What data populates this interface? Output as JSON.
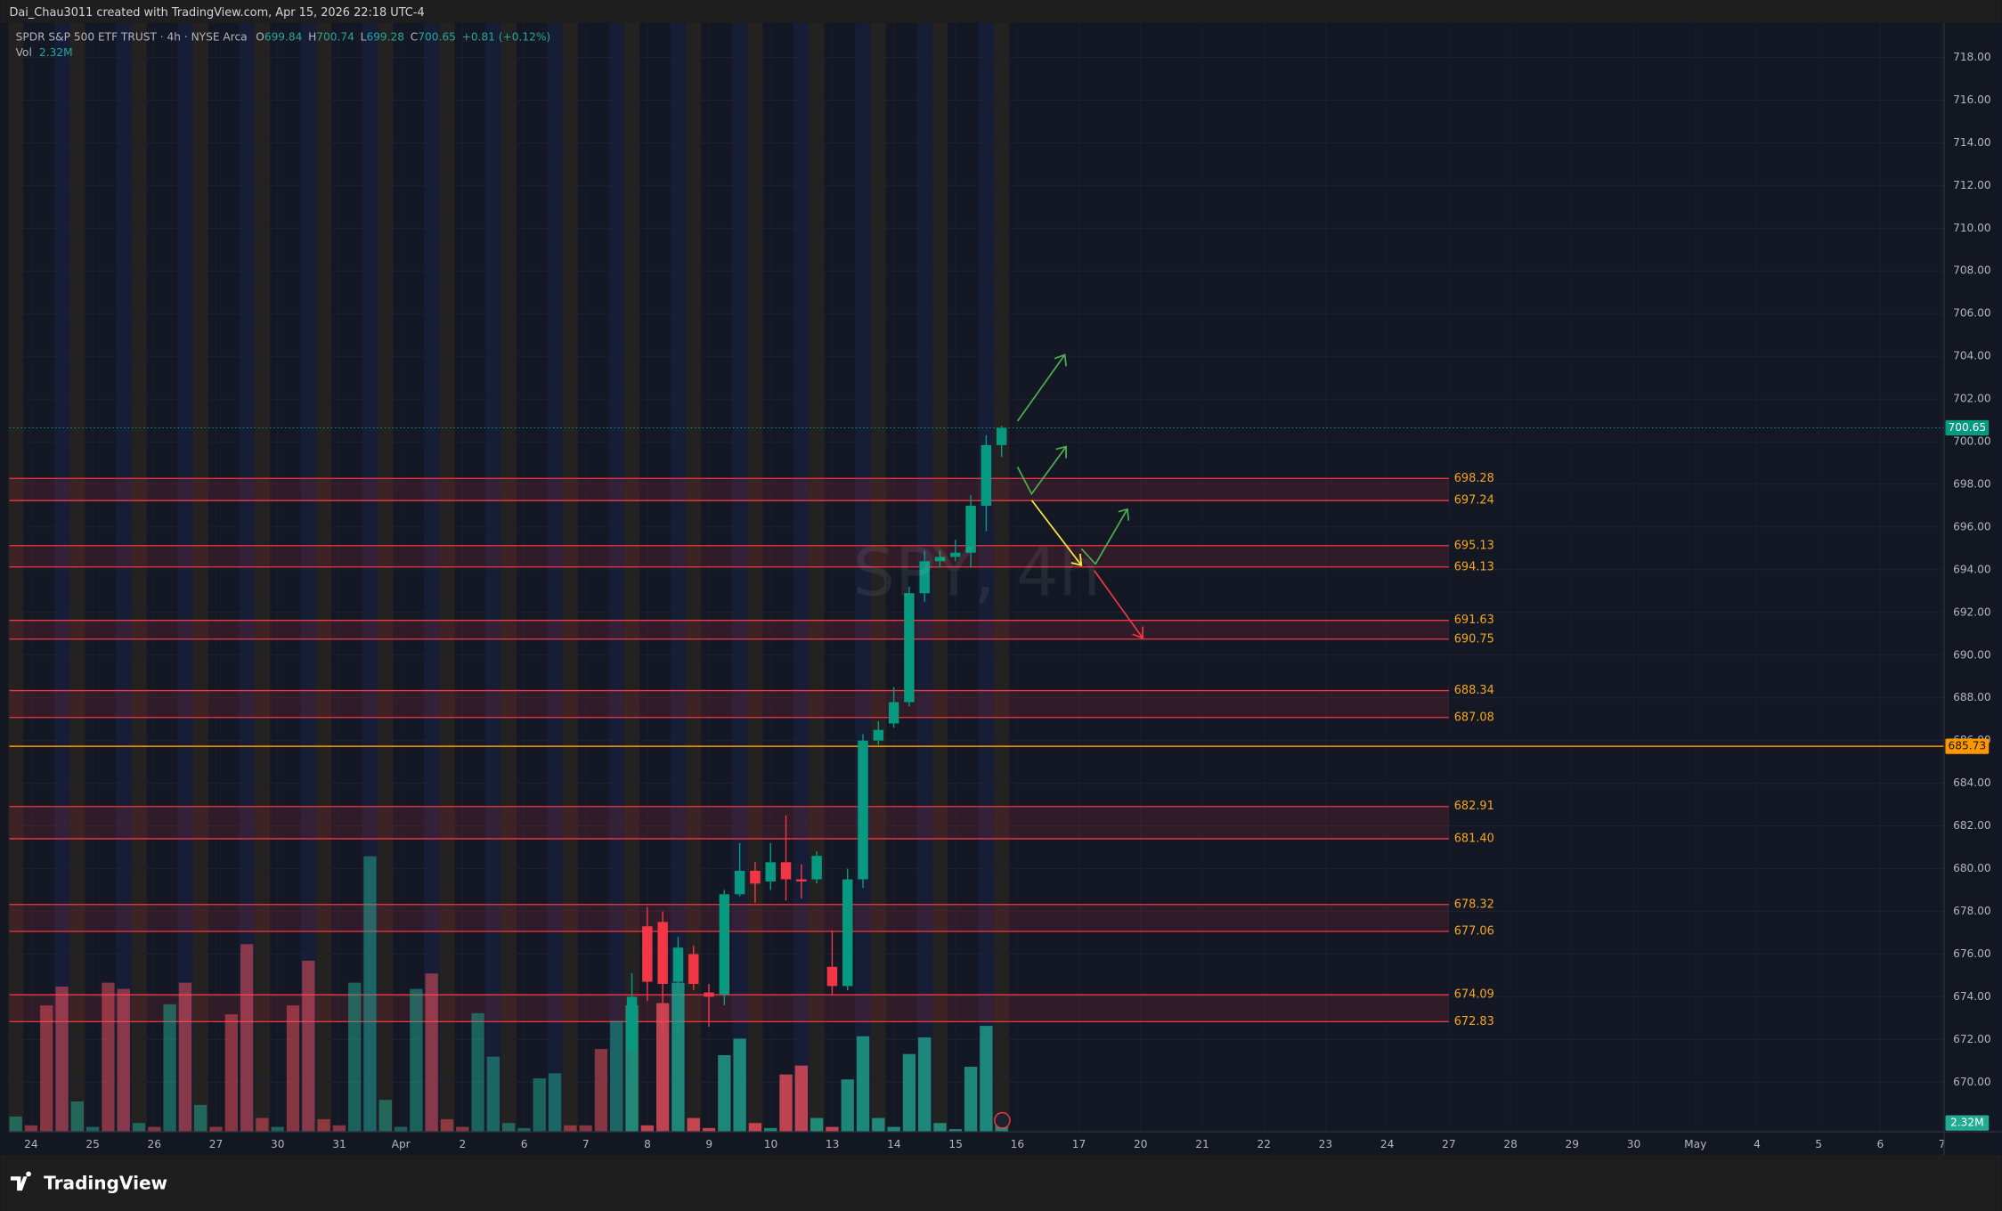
{
  "header": {
    "credit": "Dai_Chau3011 created with TradingView.com, Apr 15, 2026 22:18 UTC-4"
  },
  "footer": {
    "brand": "TradingView"
  },
  "chart_data": {
    "type": "candlestick",
    "title": "SPDR S&P 500 ETF TRUST · 4h · NYSE Arca",
    "watermark": "SPY, 4h",
    "ohlc_letters": [
      "O",
      "H",
      "L",
      "C"
    ],
    "change_label": "+0.81 (+0.12%)",
    "volume_name": "Vol",
    "volume_label": "2.32M",
    "up_color": "#089981",
    "down_color": "#f23645",
    "ylim": [
      669.0,
      719.2
    ],
    "yticks": [
      {
        "value": 670,
        "label": "670.00"
      },
      {
        "value": 672,
        "label": "672.00"
      },
      {
        "value": 674,
        "label": "674.00"
      },
      {
        "value": 676,
        "label": "676.00"
      },
      {
        "value": 678,
        "label": "678.00"
      },
      {
        "value": 680,
        "label": "680.00"
      },
      {
        "value": 682,
        "label": "682.00"
      },
      {
        "value": 684,
        "label": "684.00"
      },
      {
        "value": 686,
        "label": "686.00"
      },
      {
        "value": 688,
        "label": "688.00"
      },
      {
        "value": 690,
        "label": "690.00"
      },
      {
        "value": 692,
        "label": "692.00"
      },
      {
        "value": 694,
        "label": "694.00"
      },
      {
        "value": 696,
        "label": "696.00"
      },
      {
        "value": 698,
        "label": "698.00"
      },
      {
        "value": 700,
        "label": "700.00"
      },
      {
        "value": 702,
        "label": "702.00"
      },
      {
        "value": 704,
        "label": "704.00"
      },
      {
        "value": 706,
        "label": "706.00"
      },
      {
        "value": 708,
        "label": "708.00"
      },
      {
        "value": 710,
        "label": "710.00"
      },
      {
        "value": 712,
        "label": "712.00"
      },
      {
        "value": 714,
        "label": "714.00"
      },
      {
        "value": 716,
        "label": "716.00"
      },
      {
        "value": 718,
        "label": "718.00"
      }
    ],
    "grid": true,
    "x_labels": [
      "24",
      "25",
      "26",
      "27",
      "30",
      "31",
      "Apr",
      "2",
      "6",
      "7",
      "8",
      "9",
      "10",
      "13",
      "14",
      "15",
      "16",
      "17",
      "20",
      "21",
      "22",
      "23",
      "24",
      "27",
      "28",
      "29",
      "30",
      "May",
      "4",
      "5",
      "6",
      "7"
    ],
    "zones": [
      [
        698.28,
        697.24
      ],
      [
        695.13,
        694.13
      ],
      [
        691.63,
        690.75
      ],
      [
        688.34,
        687.08
      ],
      [
        682.91,
        {
          "value": 681.4,
          "label": "681.40"
        }
      ],
      [
        678.32,
        677.06
      ],
      [
        674.09,
        672.83
      ]
    ],
    "zone_color": "#f23645",
    "zone_label_color": "#f5a623",
    "marked_level": 685.73,
    "marked_level_color": "#ff9800",
    "last_price": 700.65,
    "candles": [
      null,
      null,
      null,
      null,
      null,
      null,
      null,
      null,
      null,
      null,
      null,
      null,
      null,
      null,
      null,
      null,
      null,
      null,
      null,
      null,
      null,
      null,
      null,
      null,
      null,
      null,
      null,
      null,
      null,
      null,
      null,
      null,
      null,
      null,
      null,
      null,
      null,
      null,
      null,
      null,
      {
        "open": 671.5,
        "high": 675.1,
        "low": 670.0,
        "close": 674.0
      },
      {
        "open": 677.3,
        "high": 678.2,
        "low": 673.8,
        "close": 674.7
      },
      {
        "open": 677.5,
        "high": 678.0,
        "low": 672.2,
        "close": 674.6
      },
      {
        "open": 674.7,
        "high": 676.8,
        "low": 672.3,
        "close": 676.3
      },
      {
        "open": 676.0,
        "high": 676.4,
        "low": 674.3,
        "close": 674.6
      },
      {
        "open": 674.2,
        "high": 674.6,
        "low": 672.6,
        "close": 674.0
      },
      {
        "open": 674.1,
        "high": 679.0,
        "low": 673.6,
        "close": 678.8
      },
      {
        "open": 678.8,
        "high": 681.2,
        "low": 678.7,
        "close": 679.9
      },
      {
        "open": 679.9,
        "high": 680.3,
        "low": 678.4,
        "close": 679.3
      },
      {
        "open": 679.4,
        "high": 681.2,
        "low": 679.0,
        "close": 680.3
      },
      {
        "open": 680.3,
        "high": 682.5,
        "low": 678.5,
        "close": 679.5
      },
      {
        "open": 679.5,
        "high": 680.2,
        "low": 678.6,
        "close": 679.4
      },
      {
        "open": 679.5,
        "high": 680.8,
        "low": 679.3,
        "close": 680.6
      },
      {
        "open": 675.4,
        "high": 677.1,
        "low": 674.1,
        "close": 674.5
      },
      {
        "open": 674.5,
        "high": 680.0,
        "low": 674.3,
        "close": 679.5
      },
      {
        "open": 679.5,
        "high": 686.3,
        "low": 679.1,
        "close": 686.0
      },
      {
        "open": 686.0,
        "high": 686.9,
        "low": 685.8,
        "close": 686.5
      },
      {
        "open": 686.8,
        "high": 688.5,
        "low": 686.6,
        "close": 687.8
      },
      {
        "open": 687.8,
        "high": 693.2,
        "low": 687.6,
        "close": 692.9
      },
      {
        "open": 692.9,
        "high": 694.9,
        "low": 692.5,
        "close": 694.4
      },
      {
        "open": 694.4,
        "high": 694.9,
        "low": 694.1,
        "close": 694.6
      },
      {
        "open": 694.6,
        "high": 695.4,
        "low": 694.4,
        "close": 694.8
      },
      {
        "open": 694.8,
        "high": 697.5,
        "low": 694.1,
        "close": 697.0
      },
      {
        "open": 697.0,
        "high": 700.3,
        "low": 695.8,
        "close": 699.84
      },
      {
        "open": 699.84,
        "high": 700.74,
        "low": 699.28,
        "close": 700.65
      }
    ],
    "volume": [
      4.0,
      1.7,
      32.8,
      37.7,
      7.9,
      1.3,
      38.7,
      37.1,
      2.3,
      1.3,
      33.1,
      38.7,
      7.0,
      1.3,
      30.5,
      48.7,
      3.6,
      1.3,
      32.8,
      44.4,
      3.3,
      1.7,
      38.7,
      71.5,
      8.3,
      1.3,
      37.1,
      41.1,
      3.3,
      1.3,
      30.8,
      19.5,
      2.3,
      1.0,
      13.9,
      15.2,
      1.7,
      1.7,
      21.5,
      28.8,
      32.8,
      1.7,
      33.4,
      38.7,
      3.6,
      1.0,
      19.9,
      24.2,
      2.3,
      1.0,
      14.9,
      17.2,
      3.6,
      1.3,
      13.6,
      24.8,
      3.6,
      1.3,
      20.2,
      24.5,
      2.3,
      0.7,
      16.9,
      27.5,
      2.32
    ],
    "volume_up": [
      true,
      false,
      false,
      false,
      true,
      true,
      false,
      false,
      true,
      false,
      true,
      false,
      true,
      false,
      false,
      false,
      false,
      true,
      false,
      false,
      false,
      false,
      true,
      true,
      true,
      true,
      true,
      false,
      false,
      false,
      true,
      true,
      true,
      true,
      true,
      true,
      false,
      false,
      false,
      true,
      true,
      false,
      false,
      true,
      false,
      false,
      true,
      true,
      false,
      true,
      false,
      false,
      true,
      false,
      true,
      true,
      true,
      true,
      true,
      true,
      true,
      true,
      true,
      true,
      true
    ]
  }
}
